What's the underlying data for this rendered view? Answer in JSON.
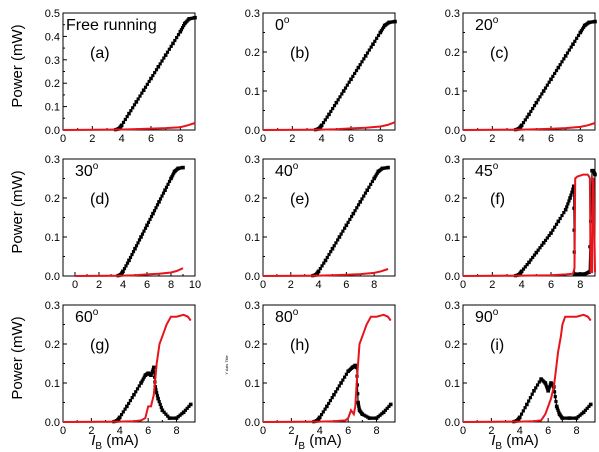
{
  "figure": {
    "ylabel": "Power (mW)",
    "xlabel_var": "I",
    "xlabel_sub": "B",
    "xlabel_unit": " (mA)",
    "stray_text": "Y Axis Title"
  },
  "colors": {
    "black_series": "#000000",
    "red_series": "#e8141c"
  },
  "chart_data": [
    {
      "type": "line",
      "title": "Free running",
      "letter": "(a)",
      "xlim": [
        0,
        9
      ],
      "ylim": [
        0,
        0.5
      ],
      "xticks": [
        "0",
        "2",
        "4",
        "6",
        "8"
      ],
      "yticks": [
        "0.0",
        "0.1",
        "0.2",
        "0.3",
        "0.4",
        "0.5"
      ],
      "series": [
        {
          "color": "black",
          "marker": "square",
          "x": [
            0,
            3.5,
            3.8,
            4.0,
            4.5,
            5,
            5.5,
            6,
            6.5,
            7,
            7.5,
            8,
            8.3,
            8.6,
            9.0
          ],
          "y": [
            0,
            0,
            0.005,
            0.02,
            0.07,
            0.12,
            0.17,
            0.22,
            0.27,
            0.32,
            0.37,
            0.42,
            0.455,
            0.475,
            0.48
          ]
        },
        {
          "color": "red",
          "x": [
            0,
            4,
            5,
            6,
            7,
            8,
            8.5,
            9.0
          ],
          "y": [
            0,
            0.002,
            0.004,
            0.006,
            0.008,
            0.012,
            0.02,
            0.03
          ]
        }
      ]
    },
    {
      "type": "line",
      "title": "0",
      "title_sup": "o",
      "letter": "(b)",
      "xlim": [
        0,
        9
      ],
      "ylim": [
        0,
        0.3
      ],
      "xticks": [
        "0",
        "2",
        "4",
        "6",
        "8"
      ],
      "yticks": [
        "0.0",
        "0.1",
        "0.2",
        "0.3"
      ],
      "series": [
        {
          "color": "black",
          "marker": "square",
          "x": [
            0,
            3.5,
            3.8,
            4.0,
            4.5,
            5,
            5.5,
            6,
            6.5,
            7,
            7.5,
            8,
            8.3,
            8.6,
            9.0
          ],
          "y": [
            0,
            0,
            0.003,
            0.012,
            0.04,
            0.07,
            0.1,
            0.13,
            0.16,
            0.19,
            0.22,
            0.25,
            0.268,
            0.276,
            0.278
          ]
        },
        {
          "color": "red",
          "x": [
            0,
            4,
            5,
            6,
            7,
            8,
            8.5,
            9.0
          ],
          "y": [
            0,
            0.001,
            0.002,
            0.004,
            0.006,
            0.009,
            0.013,
            0.02
          ]
        }
      ]
    },
    {
      "type": "line",
      "title": "20",
      "title_sup": "o",
      "letter": "(c)",
      "xlim": [
        0,
        9
      ],
      "ylim": [
        0,
        0.3
      ],
      "xticks": [
        "0",
        "2",
        "4",
        "6",
        "8"
      ],
      "yticks": [
        "0.0",
        "0.1",
        "0.2",
        "0.3"
      ],
      "series": [
        {
          "color": "black",
          "marker": "square",
          "x": [
            0,
            3.5,
            3.8,
            4.0,
            4.5,
            5,
            5.5,
            6,
            6.5,
            7,
            7.5,
            8,
            8.3,
            8.6,
            9.0
          ],
          "y": [
            0,
            0,
            0.003,
            0.012,
            0.04,
            0.07,
            0.1,
            0.13,
            0.16,
            0.19,
            0.22,
            0.25,
            0.268,
            0.276,
            0.278
          ]
        },
        {
          "color": "red",
          "x": [
            0,
            4,
            5,
            6,
            7,
            8,
            8.5,
            9.0
          ],
          "y": [
            0,
            0.001,
            0.002,
            0.003,
            0.005,
            0.008,
            0.012,
            0.018
          ]
        }
      ]
    },
    {
      "type": "line",
      "title": "30",
      "title_sup": "o",
      "letter": "(d)",
      "xlim": [
        -1,
        10
      ],
      "ylim": [
        0,
        0.3
      ],
      "xticks": [
        "0",
        "2",
        "4",
        "6",
        "8",
        "10"
      ],
      "yticks": [
        "0.0",
        "0.1",
        "0.2",
        "0.3"
      ],
      "series": [
        {
          "color": "black",
          "marker": "square",
          "x": [
            0,
            3.5,
            3.8,
            4.0,
            4.5,
            5,
            5.5,
            6,
            6.5,
            7,
            7.5,
            8,
            8.3,
            8.6,
            9.0
          ],
          "y": [
            0,
            0,
            0.003,
            0.012,
            0.04,
            0.07,
            0.1,
            0.13,
            0.16,
            0.19,
            0.22,
            0.25,
            0.268,
            0.276,
            0.278
          ]
        },
        {
          "color": "red",
          "x": [
            0,
            4,
            5,
            6,
            7,
            8,
            8.5,
            9.0
          ],
          "y": [
            0,
            0.001,
            0.002,
            0.004,
            0.006,
            0.009,
            0.013,
            0.02
          ]
        }
      ]
    },
    {
      "type": "line",
      "title": "40",
      "title_sup": "o",
      "letter": "(e)",
      "xlim": [
        0,
        9.5
      ],
      "ylim": [
        0,
        0.3
      ],
      "xticks": [
        "0",
        "2",
        "4",
        "6",
        "8"
      ],
      "yticks": [
        "0.0",
        "0.1",
        "0.2",
        "0.3"
      ],
      "series": [
        {
          "color": "black",
          "marker": "square",
          "x": [
            0,
            3.5,
            3.8,
            4.0,
            4.5,
            5,
            5.5,
            6,
            6.5,
            7,
            7.5,
            8,
            8.3,
            8.6,
            9.0
          ],
          "y": [
            0,
            0,
            0.003,
            0.012,
            0.04,
            0.07,
            0.1,
            0.13,
            0.16,
            0.19,
            0.22,
            0.25,
            0.268,
            0.276,
            0.278
          ]
        },
        {
          "color": "red",
          "x": [
            0,
            4,
            5,
            6,
            7,
            8,
            8.5,
            9.0
          ],
          "y": [
            0,
            0.001,
            0.002,
            0.003,
            0.005,
            0.008,
            0.012,
            0.018
          ]
        }
      ]
    },
    {
      "type": "line",
      "title": "45",
      "title_sup": "o",
      "letter": "(f)",
      "xlim": [
        0,
        9
      ],
      "ylim": [
        0,
        0.3
      ],
      "xticks": [
        "0",
        "2",
        "4",
        "6",
        "8"
      ],
      "yticks": [
        "0.0",
        "0.1",
        "0.2",
        "0.3"
      ],
      "series": [
        {
          "color": "black",
          "marker": "square",
          "x": [
            0,
            3.5,
            3.8,
            4.0,
            4.5,
            5,
            5.5,
            6,
            6.5,
            7,
            7.3,
            7.55,
            7.6,
            8,
            8.3,
            8.6,
            8.8,
            8.9,
            9.0
          ],
          "y": [
            0,
            0,
            0.003,
            0.012,
            0.035,
            0.06,
            0.085,
            0.11,
            0.14,
            0.17,
            0.2,
            0.23,
            0.005,
            0.005,
            0.005,
            0.01,
            0.27,
            0.27,
            0.26
          ]
        },
        {
          "color": "red",
          "x": [
            0,
            4,
            6,
            7,
            7.5,
            7.6,
            7.65,
            7.8,
            8.2,
            8.5,
            8.6,
            8.65,
            8.7,
            8.8,
            8.85,
            8.9,
            9.0
          ],
          "y": [
            0,
            0.001,
            0.002,
            0.004,
            0.006,
            0.02,
            0.25,
            0.255,
            0.26,
            0.26,
            0.255,
            0.25,
            0.01,
            0.01,
            0.25,
            0.25,
            0.01
          ]
        }
      ]
    },
    {
      "type": "line",
      "title": "60",
      "title_sup": "o",
      "letter": "(g)",
      "xlim": [
        0,
        9.3
      ],
      "ylim": [
        0,
        0.3
      ],
      "xticks": [
        "0",
        "2",
        "4",
        "6",
        "8"
      ],
      "yticks": [
        "0.0",
        "0.1",
        "0.2",
        "0.3"
      ],
      "series": [
        {
          "color": "black",
          "marker": "square",
          "x": [
            0,
            3.5,
            3.8,
            4.0,
            4.5,
            5,
            5.5,
            5.8,
            6.0,
            6.2,
            6.4,
            6.5,
            6.7,
            7.0,
            7.5,
            8,
            8.5,
            9.0
          ],
          "y": [
            0,
            0,
            0.003,
            0.012,
            0.04,
            0.07,
            0.1,
            0.12,
            0.125,
            0.12,
            0.14,
            0.09,
            0.06,
            0.03,
            0.01,
            0.01,
            0.025,
            0.045
          ]
        },
        {
          "color": "red",
          "x": [
            0,
            4,
            5,
            5.5,
            5.8,
            6.0,
            6.2,
            6.4,
            6.6,
            6.8,
            7.0,
            7.3,
            7.6,
            8.0,
            8.5,
            8.8,
            9.0
          ],
          "y": [
            0,
            0.001,
            0.002,
            0.004,
            0.01,
            0.04,
            0.04,
            0.07,
            0.15,
            0.2,
            0.22,
            0.25,
            0.27,
            0.27,
            0.275,
            0.27,
            0.26
          ]
        }
      ]
    },
    {
      "type": "line",
      "title": "80",
      "title_sup": "o",
      "letter": "(h)",
      "xlim": [
        0,
        9.3
      ],
      "ylim": [
        0,
        0.3
      ],
      "xticks": [
        "0",
        "2",
        "4",
        "6",
        "8"
      ],
      "yticks": [
        "0.0",
        "0.1",
        "0.2",
        "0.3"
      ],
      "series": [
        {
          "color": "black",
          "marker": "square",
          "x": [
            0,
            3.5,
            3.8,
            4.0,
            4.5,
            5,
            5.5,
            6,
            6.3,
            6.5,
            6.6,
            6.7,
            6.8,
            7.0,
            7.5,
            8,
            8.5,
            9.0
          ],
          "y": [
            0,
            0,
            0.003,
            0.012,
            0.04,
            0.07,
            0.1,
            0.13,
            0.14,
            0.145,
            0.14,
            0.05,
            0.03,
            0.02,
            0.01,
            0.01,
            0.025,
            0.045
          ]
        },
        {
          "color": "red",
          "x": [
            0,
            4,
            5,
            5.8,
            6.0,
            6.2,
            6.4,
            6.5,
            6.6,
            6.8,
            7.0,
            7.3,
            7.6,
            8.0,
            8.5,
            8.8,
            9.0
          ],
          "y": [
            0,
            0.001,
            0.002,
            0.004,
            0.01,
            0.03,
            0.02,
            0.04,
            0.1,
            0.2,
            0.22,
            0.25,
            0.27,
            0.27,
            0.275,
            0.27,
            0.26
          ]
        }
      ]
    },
    {
      "type": "line",
      "title": "90",
      "title_sup": "o",
      "letter": "(i)",
      "xlim": [
        0,
        9.3
      ],
      "ylim": [
        0,
        0.3
      ],
      "xticks": [
        "0",
        "2",
        "4",
        "6",
        "8"
      ],
      "yticks": [
        "0.0",
        "0.1",
        "0.2",
        "0.3"
      ],
      "series": [
        {
          "color": "black",
          "marker": "square",
          "x": [
            0,
            3.5,
            3.8,
            4.0,
            4.5,
            5,
            5.5,
            5.8,
            6.0,
            6.2,
            6.4,
            6.6,
            6.8,
            7.0,
            7.5,
            8,
            8.5,
            9.0
          ],
          "y": [
            0,
            0,
            0.003,
            0.012,
            0.045,
            0.08,
            0.11,
            0.1,
            0.08,
            0.1,
            0.09,
            0.04,
            0.02,
            0.01,
            0.01,
            0.01,
            0.025,
            0.045
          ]
        },
        {
          "color": "red",
          "x": [
            0,
            4,
            5,
            5.5,
            5.8,
            6.0,
            6.2,
            6.4,
            6.5,
            6.7,
            6.9,
            7.0,
            7.2,
            7.5,
            8.0,
            8.5,
            8.8,
            9.0
          ],
          "y": [
            0,
            0.001,
            0.002,
            0.004,
            0.02,
            0.04,
            0.06,
            0.09,
            0.12,
            0.18,
            0.22,
            0.25,
            0.27,
            0.27,
            0.27,
            0.275,
            0.27,
            0.26
          ]
        }
      ]
    }
  ]
}
